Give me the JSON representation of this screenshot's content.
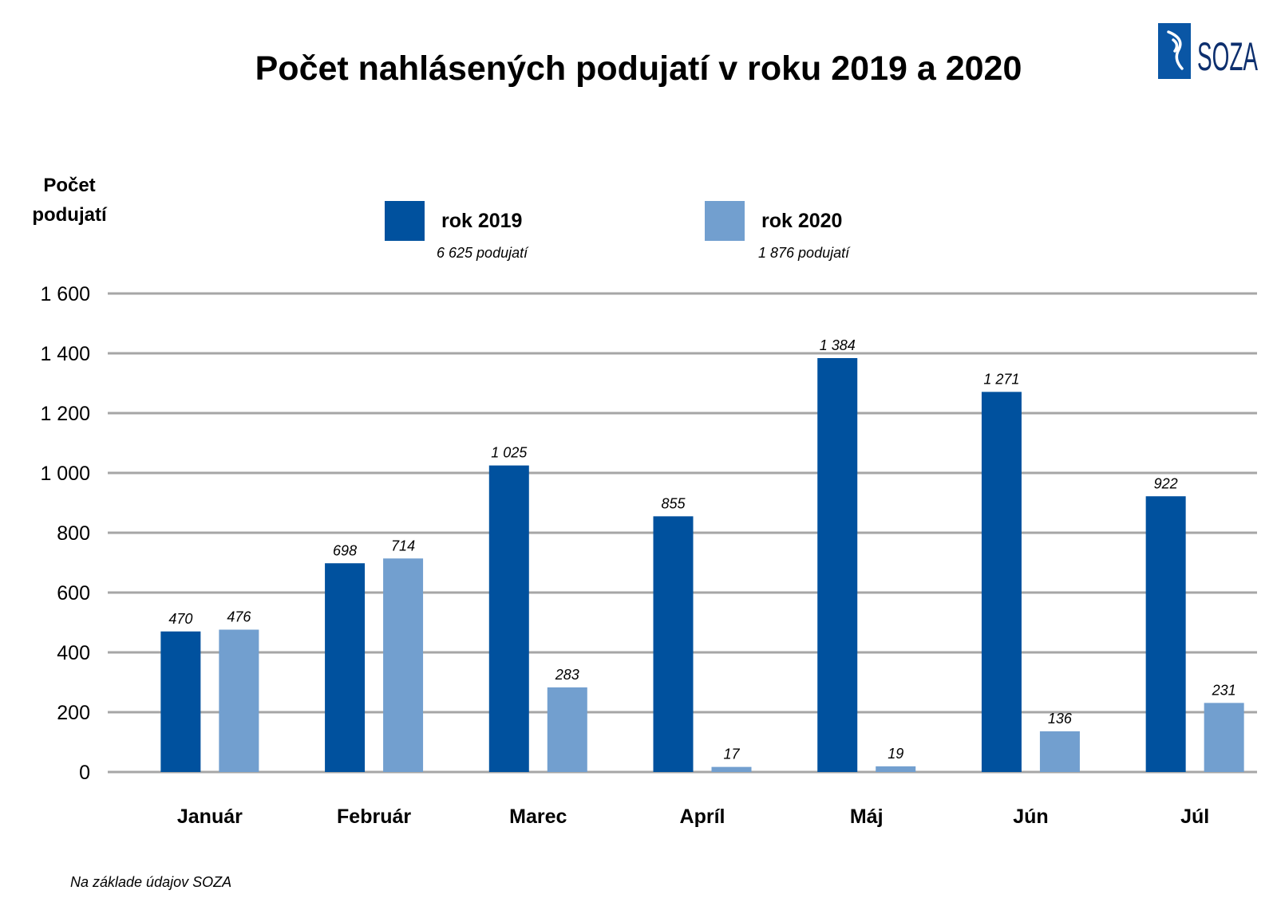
{
  "title": "Počet nahlásených podujatí v roku 2019 a 2020",
  "logo": {
    "text": "SOZA",
    "color": "#0a56a5"
  },
  "source_note": "Na základe údajov SOZA",
  "legend": [
    {
      "label": "rok 2019",
      "total": "6 625 podujatí",
      "color": "#00519e"
    },
    {
      "label": "rok 2020",
      "total": "1 876 podujatí",
      "color": "#729fcf"
    }
  ],
  "chart_data": {
    "type": "bar",
    "ylabel_lines": [
      "Počet",
      "podujatí"
    ],
    "ylim": [
      0,
      1600
    ],
    "yticks": [
      {
        "value": 0,
        "label": "0"
      },
      {
        "value": 200,
        "label": "200"
      },
      {
        "value": 400,
        "label": "400"
      },
      {
        "value": 600,
        "label": "600"
      },
      {
        "value": 800,
        "label": "800"
      },
      {
        "value": 1000,
        "label": "1 000"
      },
      {
        "value": 1200,
        "label": "1 200"
      },
      {
        "value": 1400,
        "label": "1 400"
      },
      {
        "value": 1600,
        "label": "1 600"
      }
    ],
    "grid": true,
    "legend_position": "top",
    "categories": [
      "Január",
      "Február",
      "Marec",
      "Apríl",
      "Máj",
      "Jún",
      "Júl"
    ],
    "series": [
      {
        "name": "rok 2019",
        "color": "#00519e",
        "values": [
          470,
          698,
          1025,
          855,
          1384,
          1271,
          922
        ],
        "labels": [
          "470",
          "698",
          "1 025",
          "855",
          "1 384",
          "1 271",
          "922"
        ]
      },
      {
        "name": "rok 2020",
        "color": "#729fcf",
        "values": [
          476,
          714,
          283,
          17,
          19,
          136,
          231
        ],
        "labels": [
          "476",
          "714",
          "283",
          "17",
          "19",
          "136",
          "231"
        ]
      }
    ]
  }
}
